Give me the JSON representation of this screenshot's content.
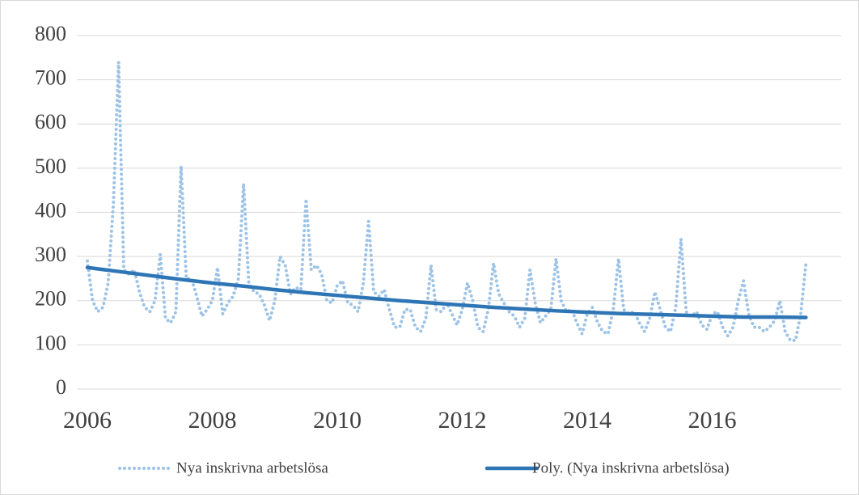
{
  "chart_data": {
    "type": "line",
    "grid": true,
    "legend": "bottom",
    "xlim": [
      2006,
      2017.65
    ],
    "xticks": [
      2006,
      2008,
      2010,
      2012,
      2014,
      2016
    ],
    "ylim": [
      0,
      800
    ],
    "yticks": [
      0,
      100,
      200,
      300,
      400,
      500,
      600,
      700,
      800
    ],
    "series": [
      {
        "name": "Nya inskrivna arbetslösa",
        "color": "#9dc3e6",
        "style": "dotted",
        "x": [
          2006,
          2006.083,
          2006.167,
          2006.25,
          2006.333,
          2006.417,
          2006.5,
          2006.583,
          2006.667,
          2006.75,
          2006.833,
          2006.917,
          2007,
          2007.083,
          2007.167,
          2007.25,
          2007.333,
          2007.417,
          2007.5,
          2007.583,
          2007.667,
          2007.75,
          2007.833,
          2007.917,
          2008,
          2008.083,
          2008.167,
          2008.25,
          2008.333,
          2008.417,
          2008.5,
          2008.583,
          2008.667,
          2008.75,
          2008.833,
          2008.917,
          2009,
          2009.083,
          2009.167,
          2009.25,
          2009.333,
          2009.417,
          2009.5,
          2009.583,
          2009.667,
          2009.75,
          2009.833,
          2009.917,
          2010,
          2010.083,
          2010.167,
          2010.25,
          2010.333,
          2010.417,
          2010.5,
          2010.583,
          2010.667,
          2010.75,
          2010.833,
          2010.917,
          2011,
          2011.083,
          2011.167,
          2011.25,
          2011.333,
          2011.417,
          2011.5,
          2011.583,
          2011.667,
          2011.75,
          2011.833,
          2011.917,
          2012,
          2012.083,
          2012.167,
          2012.25,
          2012.333,
          2012.417,
          2012.5,
          2012.583,
          2012.667,
          2012.75,
          2012.833,
          2012.917,
          2013,
          2013.083,
          2013.167,
          2013.25,
          2013.333,
          2013.417,
          2013.5,
          2013.583,
          2013.667,
          2013.75,
          2013.833,
          2013.917,
          2014,
          2014.083,
          2014.167,
          2014.25,
          2014.333,
          2014.417,
          2014.5,
          2014.583,
          2014.667,
          2014.75,
          2014.833,
          2014.917,
          2015,
          2015.083,
          2015.167,
          2015.25,
          2015.333,
          2015.417,
          2015.5,
          2015.583,
          2015.667,
          2015.75,
          2015.833,
          2015.917,
          2016,
          2016.083,
          2016.167,
          2016.25,
          2016.333,
          2016.417,
          2016.5,
          2016.583,
          2016.667,
          2016.75,
          2016.833,
          2016.917,
          2017,
          2017.083,
          2017.167,
          2017.25,
          2017.333,
          2017.417,
          2017.5
        ],
        "values": [
          290,
          200,
          175,
          185,
          240,
          420,
          740,
          270,
          260,
          270,
          220,
          185,
          175,
          200,
          305,
          160,
          150,
          175,
          505,
          250,
          250,
          210,
          165,
          180,
          200,
          275,
          170,
          195,
          210,
          250,
          465,
          240,
          220,
          215,
          190,
          155,
          200,
          300,
          280,
          215,
          230,
          225,
          430,
          270,
          280,
          260,
          200,
          195,
          235,
          245,
          195,
          190,
          175,
          240,
          380,
          220,
          210,
          225,
          180,
          140,
          140,
          180,
          180,
          140,
          130,
          160,
          280,
          180,
          175,
          195,
          170,
          145,
          180,
          240,
          200,
          140,
          130,
          180,
          285,
          215,
          195,
          175,
          165,
          140,
          160,
          270,
          195,
          150,
          165,
          180,
          295,
          200,
          175,
          180,
          150,
          125,
          170,
          185,
          150,
          130,
          125,
          180,
          295,
          180,
          170,
          175,
          150,
          130,
          160,
          220,
          180,
          140,
          130,
          185,
          340,
          175,
          165,
          175,
          145,
          135,
          170,
          175,
          140,
          120,
          140,
          200,
          245,
          170,
          140,
          140,
          130,
          140,
          155,
          200,
          130,
          110,
          110,
          170,
          285
        ]
      },
      {
        "name": "Poly. (Nya inskrivna arbetslösa)",
        "color": "#2e75b6",
        "style": "solid",
        "x": [
          2006,
          2006.5,
          2007,
          2007.5,
          2008,
          2008.5,
          2009,
          2009.5,
          2010,
          2010.5,
          2011,
          2011.5,
          2012,
          2012.5,
          2013,
          2013.5,
          2014,
          2014.5,
          2015,
          2015.5,
          2016,
          2016.5,
          2017,
          2017.5
        ],
        "values": [
          275,
          266,
          257,
          248,
          240,
          233,
          225,
          218,
          212,
          206,
          200,
          195,
          190,
          185,
          181,
          177,
          174,
          171,
          169,
          167,
          165,
          163,
          163,
          162
        ]
      }
    ]
  }
}
